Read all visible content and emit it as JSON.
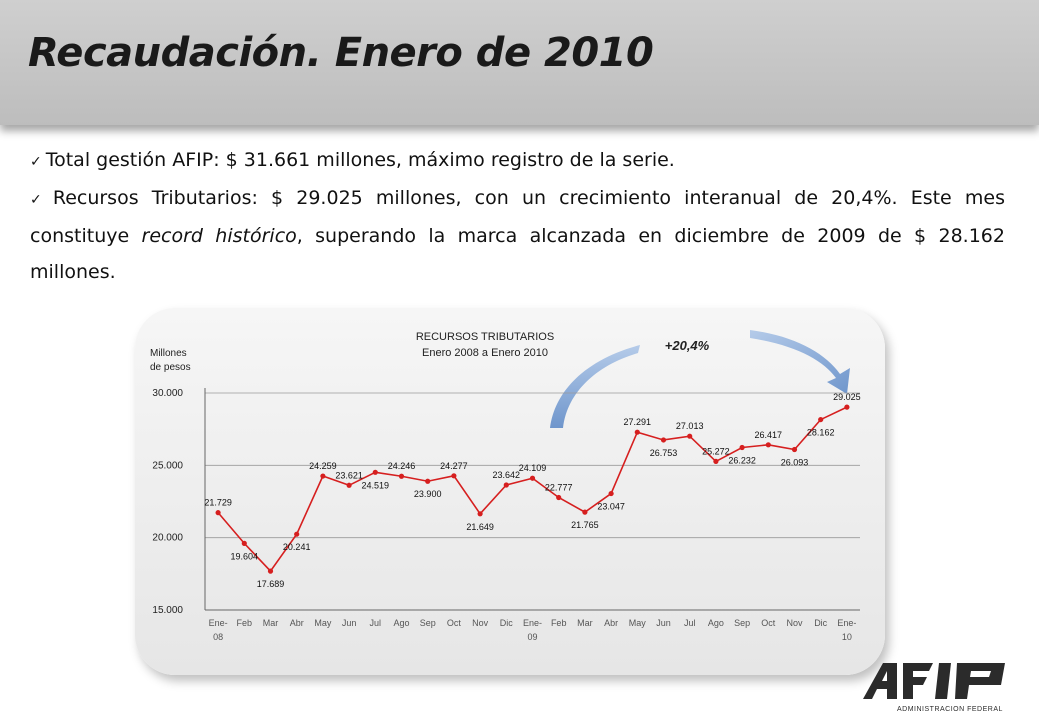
{
  "title": "Recaudación. Enero de 2010",
  "bullets": {
    "b1": "Total gestión AFIP: $ 31.661 millones, máximo registro de la serie.",
    "b2_pre": "Recursos Tributarios: $ 29.025 millones, con un crecimiento interanual de 20,4%. Este mes constituye ",
    "b2_em": "record histórico",
    "b2_post": ", superando la marca alcanzada en diciembre de 2009 de $ 28.162 millones."
  },
  "colors": {
    "line": "#d61f1f",
    "arrow": "#7aa2d8",
    "header": "#c4c4c4"
  },
  "logo": {
    "text": "AFIP",
    "sub": "ADMINISTRACION FEDERAL"
  },
  "chart_data": {
    "type": "line",
    "title": "RECURSOS TRIBUTARIOS",
    "subtitle": "Enero 2008 a Enero 2010",
    "ylabel": "Millones de pesos",
    "ylabel_lines": [
      "Millones",
      "de pesos"
    ],
    "ylim": [
      15000,
      30000
    ],
    "yticks": [
      15000,
      20000,
      25000,
      30000
    ],
    "ytick_labels": [
      "15.000",
      "20.000",
      "25.000",
      "30.000"
    ],
    "grid": true,
    "annotation": "+20,4%",
    "categories": [
      [
        "Ene-",
        "08"
      ],
      [
        "Feb"
      ],
      [
        "Mar"
      ],
      [
        "Abr"
      ],
      [
        "May"
      ],
      [
        "Jun"
      ],
      [
        "Jul"
      ],
      [
        "Ago"
      ],
      [
        "Sep"
      ],
      [
        "Oct"
      ],
      [
        "Nov"
      ],
      [
        "Dic"
      ],
      [
        "Ene-",
        "09"
      ],
      [
        "Feb"
      ],
      [
        "Mar"
      ],
      [
        "Abr"
      ],
      [
        "May"
      ],
      [
        "Jun"
      ],
      [
        "Jul"
      ],
      [
        "Ago"
      ],
      [
        "Sep"
      ],
      [
        "Oct"
      ],
      [
        "Nov"
      ],
      [
        "Dic"
      ],
      [
        "Ene-",
        "10"
      ]
    ],
    "values": [
      21729,
      19604,
      17689,
      20241,
      24259,
      23621,
      24519,
      24246,
      23900,
      24277,
      21649,
      23642,
      24109,
      22777,
      21765,
      23047,
      27291,
      26753,
      27013,
      25272,
      26232,
      26417,
      26093,
      28162,
      29025
    ],
    "labels": [
      "21.729",
      "19.604",
      "17.689",
      "20.241",
      "24.259",
      "23.621",
      "24.519",
      "24.246",
      "23.900",
      "24.277",
      "21.649",
      "23.642",
      "24.109",
      "22.777",
      "21.765",
      "23.047",
      "27.291",
      "26.753",
      "27.013",
      "25.272",
      "26.232",
      "26.417",
      "26.093",
      "28.162",
      "29.025"
    ],
    "label_pos": [
      "above",
      "below",
      "below",
      "below",
      "above",
      "above",
      "below",
      "above",
      "below",
      "above",
      "below",
      "above",
      "above",
      "above",
      "below",
      "below",
      "above",
      "below",
      "above",
      "above",
      "below",
      "above",
      "below",
      "below",
      "above"
    ]
  }
}
